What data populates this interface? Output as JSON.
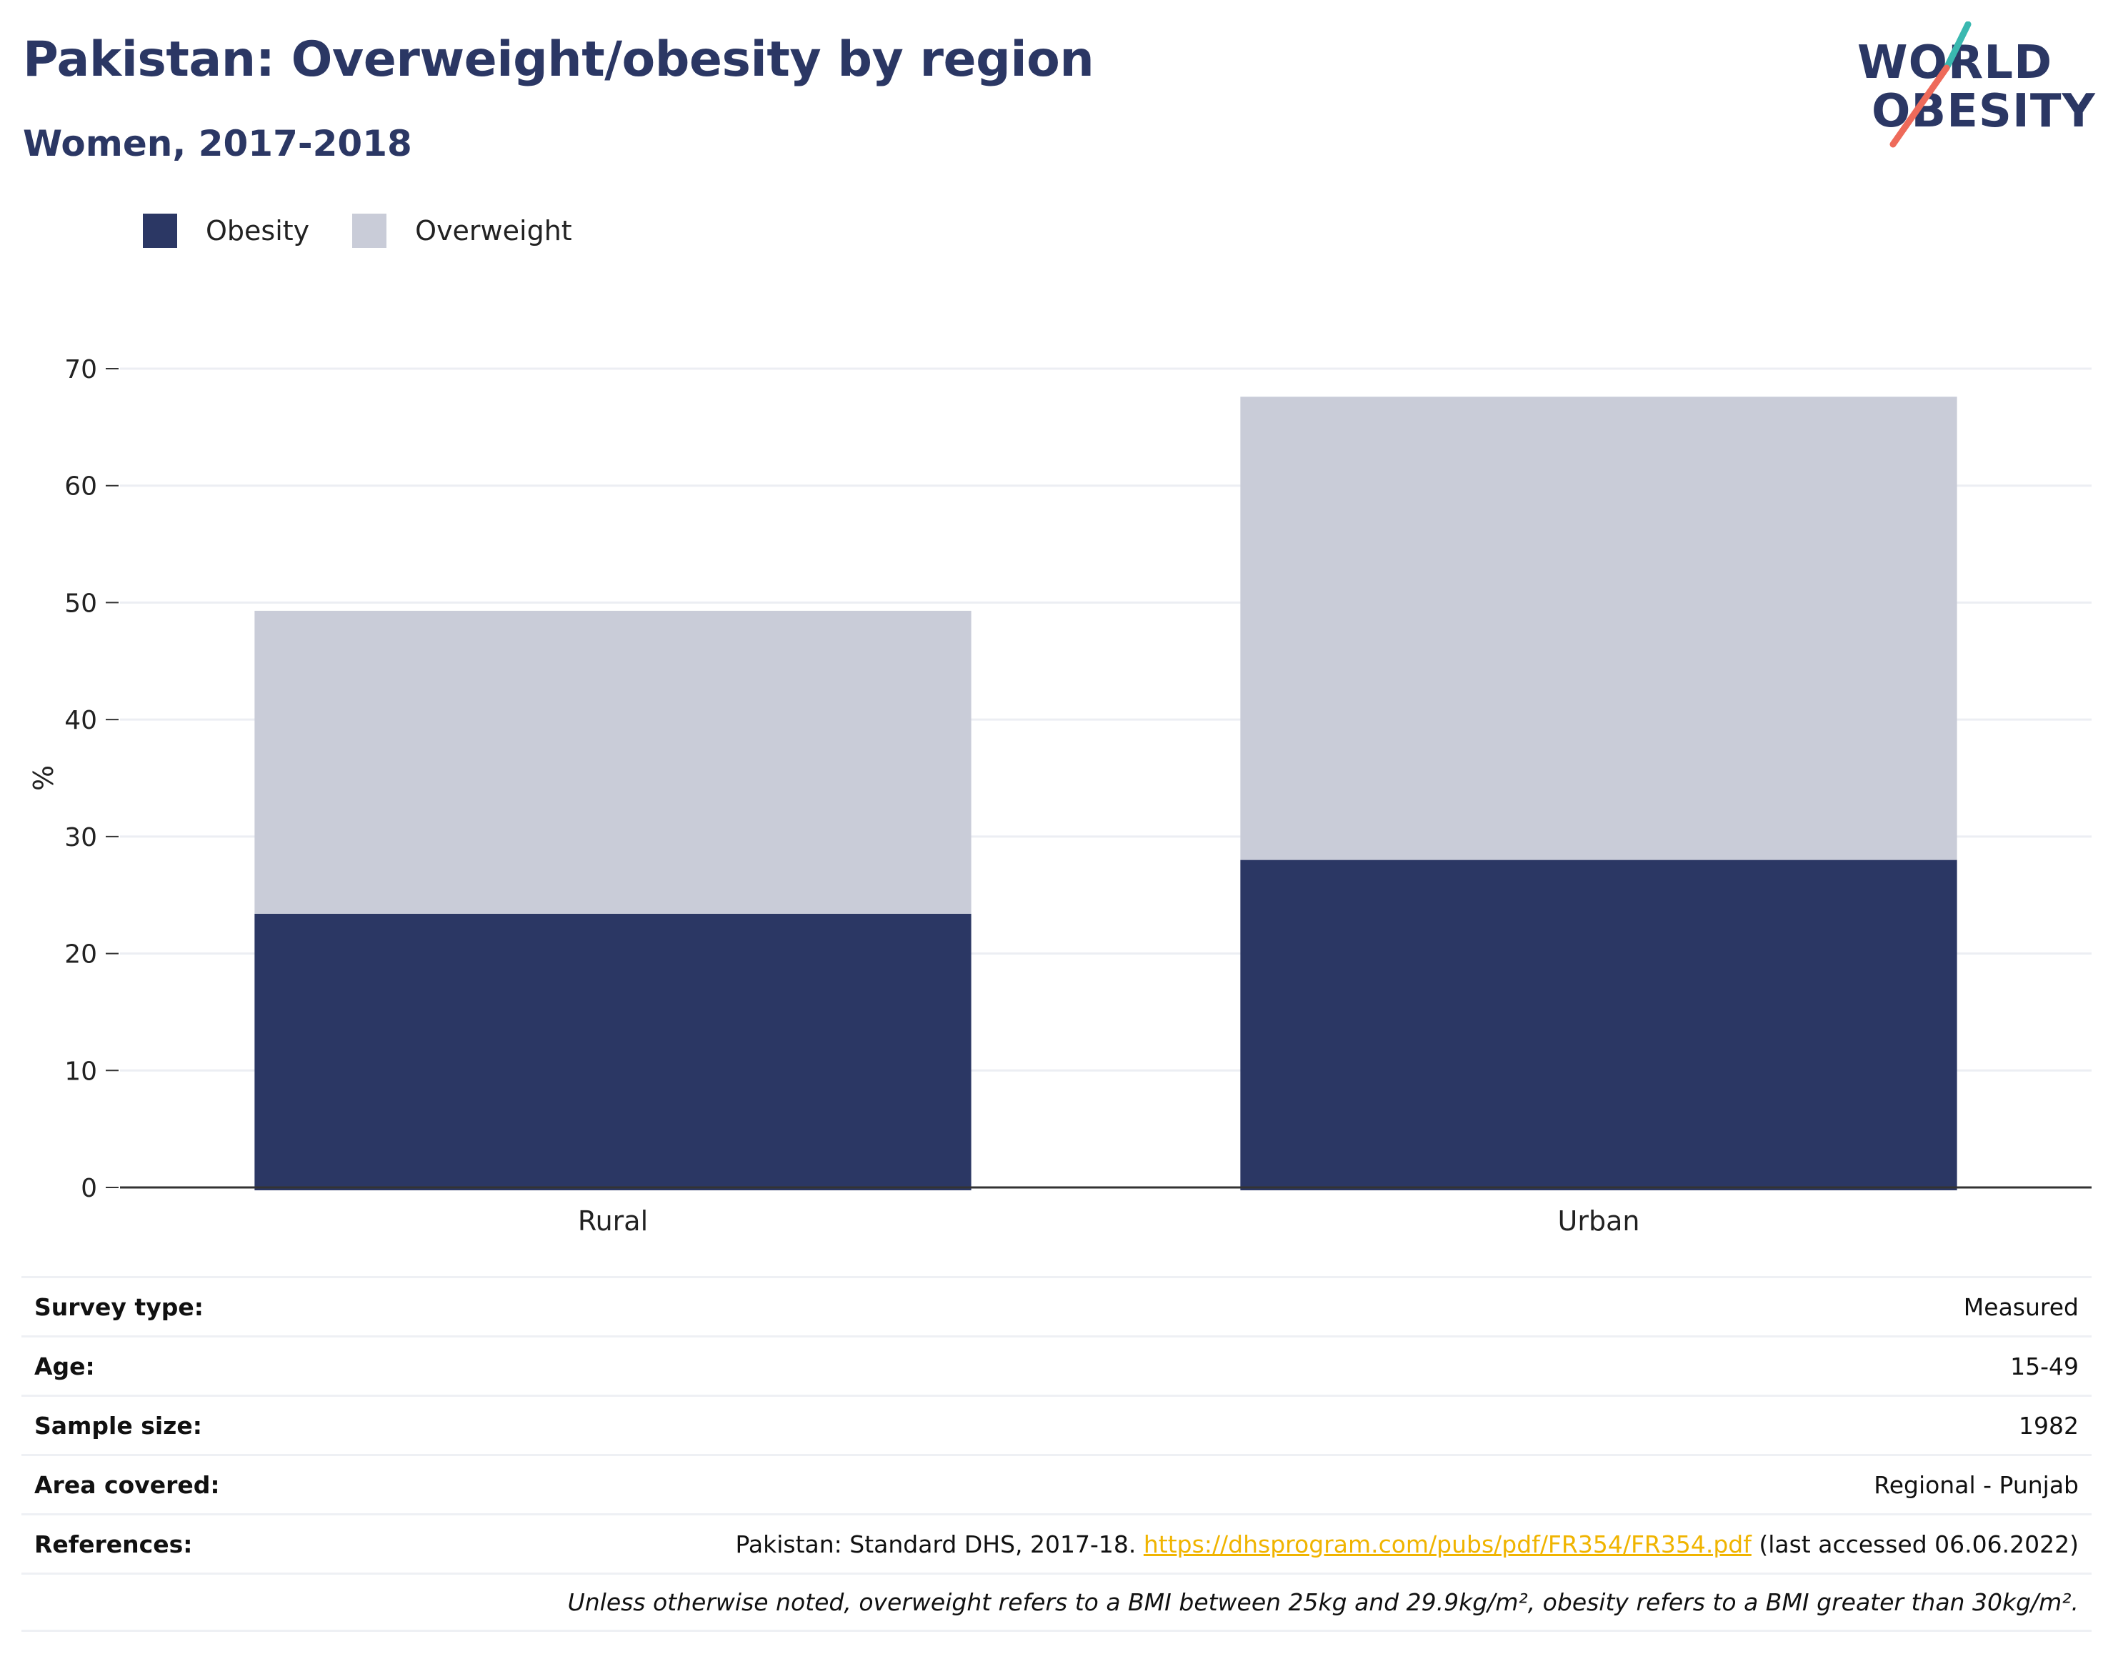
{
  "header": {
    "title": "Pakistan: Overweight/obesity by region",
    "subtitle": "Women, 2017-2018"
  },
  "logo": {
    "line1": "WORLD",
    "line2": "OBESITY",
    "colors": {
      "text": "#2b3764",
      "slash_top": "#3ab8b0",
      "slash_bottom": "#ee6a5a"
    }
  },
  "legend": [
    {
      "label": "Obesity",
      "color": "#2b3764"
    },
    {
      "label": "Overweight",
      "color": "#c9ccd8"
    }
  ],
  "chart_data": {
    "type": "bar",
    "stacked": true,
    "categories": [
      "Rural",
      "Urban"
    ],
    "series": [
      {
        "name": "Obesity",
        "values": [
          23.4,
          28.0
        ],
        "color": "#2b3764"
      },
      {
        "name": "Overweight",
        "values": [
          25.9,
          39.6
        ],
        "color": "#c9ccd8"
      }
    ],
    "ylabel": "%",
    "ylim": [
      0,
      70
    ],
    "yticks": [
      0,
      10,
      20,
      30,
      40,
      50,
      60,
      70
    ],
    "grid": true,
    "legend_position": "top-left"
  },
  "info_table": [
    {
      "key": "Survey type:",
      "value": "Measured"
    },
    {
      "key": "Age:",
      "value": "15-49"
    },
    {
      "key": "Sample size:",
      "value": "1982"
    },
    {
      "key": "Area covered:",
      "value": "Regional - Punjab"
    }
  ],
  "references": {
    "key": "References:",
    "prefix": "Pakistan: Standard DHS, 2017-18. ",
    "link": "https://dhsprogram.com/pubs/pdf/FR354/FR354.pdf",
    "suffix": " (last accessed 06.06.2022)"
  },
  "note": "Unless otherwise noted, overweight refers to a BMI between 25kg and 29.9kg/m², obesity refers to a BMI greater than 30kg/m²."
}
